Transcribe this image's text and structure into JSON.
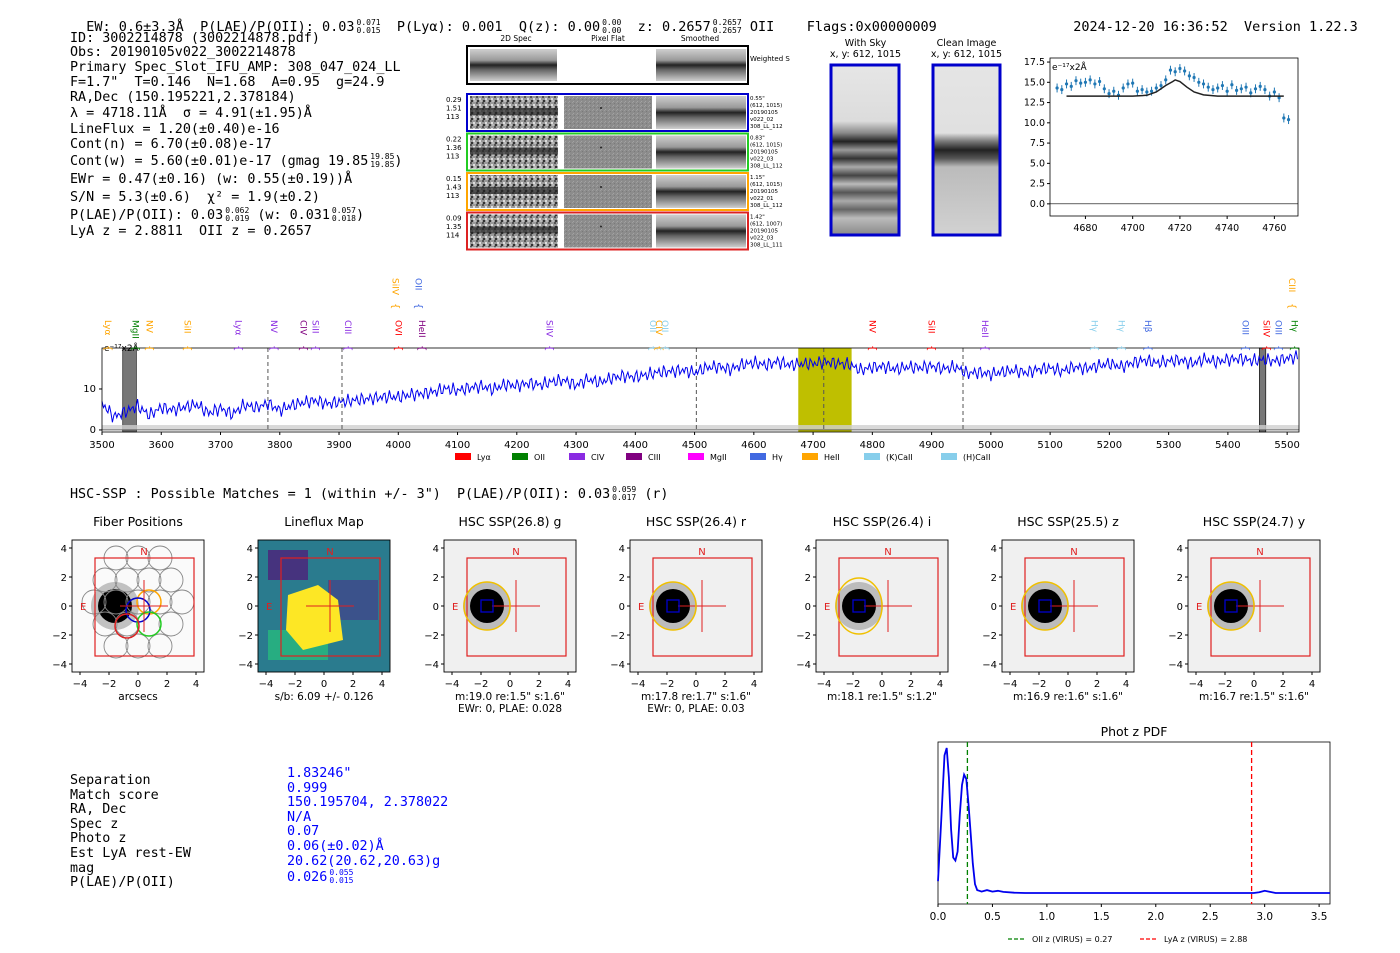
{
  "header": {
    "ew": "EW: 0.6±3.3Å",
    "plae_label": "P(LAE)/P(OII): 0.03",
    "plae_hi": "0.071",
    "plae_lo": "0.015",
    "plya": "P(Lyα): 0.001",
    "qz_label": "Q(z): 0.00",
    "qz_hi": "0.00",
    "qz_lo": "0.00",
    "z_label": "z: 0.2657",
    "z_hi": "0.2657",
    "z_lo": "0.2657",
    "z_line": "OII",
    "flags": "Flags:0x00000009",
    "datetime": "2024-12-20 16:36:52",
    "version": "Version 1.22.3"
  },
  "info": {
    "id": "ID: 3002214878 (3002214878.pdf)",
    "obs": "Obs: 20190105v022_3002214878",
    "primary": "Primary Spec_Slot_IFU_AMP: 308_047_024_LL",
    "fit": "F=1.7\"  T=0.146  N=1.68  A=0.95  g=24.9",
    "radec": "RA,Dec (150.195221,2.378184)",
    "lambda": "λ = 4718.11Å  σ = 4.91(±1.95)Å",
    "lineflux": "LineFlux = 1.20(±0.40)e-16",
    "contn": "Cont(n) = 6.70(±0.08)e-17",
    "contw": "Cont(w) = 5.60(±0.01)e-17 (gmag 19.85",
    "contw_hi": "19.85",
    "contw_lo": "19.85",
    "ewr": "EWr = 0.47(±0.16) (w: 0.55(±0.19))Å",
    "sn": "S/N = 5.3(±0.6)  χ² = 1.9(±0.2)",
    "plae": "P(LAE)/P(OII): 0.03",
    "plae_hi": "0.062",
    "plae_lo": "0.019",
    "plae_w": "(w: 0.031",
    "plae_w_hi": "0.057",
    "plae_w_lo": "0.018",
    "lyaz": "LyA z = 2.8811  OII z = 0.2657"
  },
  "spec2d": {
    "col_headers": [
      "2D Spec",
      "Pixel Flat",
      "Smoothed"
    ],
    "weighted_sum": "Weighted Sum",
    "rows": [
      {
        "left": [
          "0.29",
          "1.51",
          "113"
        ],
        "right": [
          "0.55\"",
          "(612, 1015)",
          "20190105",
          "v022_02",
          "308_LL_112"
        ],
        "color": "#0000cc"
      },
      {
        "left": [
          "0.22",
          "1.36",
          "113"
        ],
        "right": [
          "0.83\"",
          "(612, 1015)",
          "20190105",
          "v022_03",
          "308_LL_112"
        ],
        "color": "#22cc22"
      },
      {
        "left": [
          "0.15",
          "1.43",
          "113"
        ],
        "right": [
          "1.15\"",
          "(612, 1015)",
          "20190105",
          "v022_01",
          "308_LL_112"
        ],
        "color": "#ffa500"
      },
      {
        "left": [
          "0.09",
          "1.35",
          "114"
        ],
        "right": [
          "1.42\"",
          "(612, 1007)",
          "20190105",
          "v022_03",
          "308_LL_111"
        ],
        "color": "#dd2222"
      }
    ]
  },
  "sky": {
    "with_sky": "With Sky",
    "with_sky_xy": "x, y: 612, 1015",
    "clean": "Clean Image",
    "clean_xy": "x, y: 612, 1015"
  },
  "chart_data": [
    {
      "id": "zoom",
      "type": "line",
      "title": "",
      "ylabel": "e⁻¹⁷x2Å",
      "xlim": [
        4665,
        4770
      ],
      "ylim": [
        -1.5,
        18
      ],
      "xticks": [
        4680,
        4700,
        4720,
        4740,
        4760
      ],
      "yticks": [
        0.0,
        2.5,
        5.0,
        7.5,
        10.0,
        12.5,
        15.0,
        17.5
      ],
      "points_x": [
        4668,
        4670,
        4672,
        4674,
        4676,
        4678,
        4680,
        4682,
        4684,
        4686,
        4688,
        4690,
        4692,
        4694,
        4696,
        4698,
        4700,
        4702,
        4704,
        4706,
        4708,
        4710,
        4712,
        4714,
        4716,
        4718,
        4720,
        4722,
        4724,
        4726,
        4728,
        4730,
        4732,
        4734,
        4736,
        4738,
        4740,
        4742,
        4744,
        4746,
        4748,
        4750,
        4752,
        4754,
        4756,
        4758,
        4760,
        4762,
        4764,
        4766
      ],
      "points_y": [
        14.3,
        14.1,
        14.8,
        14.5,
        15.2,
        14.9,
        15.0,
        15.3,
        14.8,
        15.1,
        14.2,
        13.6,
        13.9,
        13.4,
        14.3,
        14.8,
        14.9,
        13.9,
        14.1,
        13.8,
        13.9,
        14.3,
        14.6,
        15.3,
        16.5,
        16.3,
        16.7,
        16.4,
        15.8,
        15.6,
        15.0,
        14.8,
        14.4,
        14.1,
        14.3,
        14.6,
        13.9,
        14.7,
        14.0,
        14.2,
        14.4,
        13.7,
        14.2,
        14.5,
        14.1,
        13.3,
        13.8,
        13.1,
        10.6,
        10.4
      ],
      "model_x": [
        4672,
        4690,
        4700,
        4706,
        4710,
        4714,
        4717,
        4718,
        4720,
        4723,
        4726,
        4730,
        4736,
        4745,
        4764
      ],
      "model_y": [
        13.3,
        13.3,
        13.3,
        13.4,
        13.8,
        14.6,
        15.1,
        15.3,
        15.1,
        14.4,
        13.8,
        13.45,
        13.3,
        13.3,
        13.3
      ]
    },
    {
      "id": "full-spectrum",
      "type": "line",
      "ylabel": "e⁻¹⁷x2Å",
      "xlim": [
        3500,
        5520
      ],
      "ylim": [
        -0.5,
        20
      ],
      "xticks": [
        3500,
        3600,
        3700,
        3800,
        3900,
        4000,
        4100,
        4200,
        4300,
        4400,
        4500,
        4600,
        4700,
        4800,
        4900,
        5000,
        5100,
        5200,
        5300,
        5400,
        5500
      ],
      "yticks": [
        0,
        10
      ],
      "x": [
        3500,
        3520,
        3540,
        3560,
        3580,
        3600,
        3620,
        3640,
        3660,
        3680,
        3700,
        3720,
        3740,
        3760,
        3780,
        3800,
        3820,
        3840,
        3860,
        3880,
        3900,
        3920,
        3940,
        3960,
        3980,
        4000,
        4020,
        4040,
        4060,
        4080,
        4100,
        4120,
        4140,
        4160,
        4180,
        4200,
        4220,
        4240,
        4260,
        4280,
        4300,
        4320,
        4340,
        4360,
        4380,
        4400,
        4420,
        4440,
        4460,
        4480,
        4500,
        4520,
        4540,
        4560,
        4580,
        4600,
        4620,
        4640,
        4660,
        4680,
        4700,
        4720,
        4740,
        4760,
        4780,
        4800,
        4820,
        4840,
        4860,
        4880,
        4900,
        4920,
        4940,
        4960,
        4980,
        5000,
        5020,
        5040,
        5060,
        5080,
        5100,
        5120,
        5140,
        5160,
        5180,
        5200,
        5220,
        5240,
        5260,
        5280,
        5300,
        5320,
        5340,
        5360,
        5380,
        5400,
        5420,
        5440,
        5460,
        5480,
        5500,
        5520
      ],
      "y": [
        6.5,
        3.2,
        4.5,
        5.8,
        3.6,
        5.5,
        4.9,
        5.6,
        6.2,
        4.1,
        5.3,
        3.8,
        6.1,
        5.4,
        6.5,
        4.8,
        6.0,
        6.7,
        7.2,
        6.4,
        6.8,
        7.1,
        7.5,
        7.8,
        8.1,
        8.0,
        8.6,
        8.9,
        9.3,
        10.1,
        9.6,
        10.3,
        10.7,
        9.9,
        11.1,
        10.8,
        11.4,
        11.0,
        11.8,
        12.1,
        10.9,
        12.4,
        11.6,
        12.7,
        13.2,
        12.9,
        13.5,
        14.1,
        14.3,
        14.6,
        14.0,
        15.2,
        15.5,
        14.8,
        15.9,
        16.4,
        15.8,
        16.7,
        15.9,
        16.1,
        16.2,
        16.6,
        16.3,
        16.0,
        14.6,
        15.3,
        15.5,
        14.8,
        15.4,
        15.2,
        15.6,
        14.9,
        15.4,
        13.8,
        14.1,
        13.6,
        14.2,
        14.5,
        14.0,
        14.8,
        15.1,
        14.3,
        15.4,
        15.0,
        15.6,
        16.2,
        15.4,
        16.5,
        17.0,
        16.3,
        16.8,
        17.1,
        16.2,
        17.3,
        16.6,
        17.2,
        17.4,
        16.9,
        17.1,
        16.8,
        17.5,
        17.9
      ],
      "noise_y": 1.2,
      "vlines": [
        3780,
        3905,
        4503,
        4718,
        4953
      ],
      "band": [
        4675,
        4765
      ],
      "mask_bands": [
        [
          3535,
          3558
        ],
        [
          5453,
          5464
        ]
      ],
      "legend": [
        {
          "label": "Lyα",
          "color": "#ff0000"
        },
        {
          "label": "OII",
          "color": "#008000"
        },
        {
          "label": "CIV",
          "color": "#8a2be2"
        },
        {
          "label": "CIII",
          "color": "#800080"
        },
        {
          "label": "MgII",
          "color": "#ff00ff"
        },
        {
          "label": "Hγ",
          "color": "#4169e1"
        },
        {
          "label": "HeII",
          "color": "#ffa500"
        },
        {
          "label": "(K)CaII",
          "color": "#87ceeb"
        },
        {
          "label": "(H)CaII",
          "color": "#87ceeb"
        }
      ],
      "line_labels": [
        {
          "x": 3500,
          "label": "Lyα",
          "color": "#ffa500",
          "row": 1
        },
        {
          "x": 3546,
          "label": "MgII",
          "color": "#008000",
          "row": 1
        },
        {
          "x": 3570,
          "label": "NV",
          "color": "#ffa500",
          "row": 1
        },
        {
          "x": 3634,
          "label": "SiII",
          "color": "#ffa500",
          "row": 1
        },
        {
          "x": 3720,
          "label": "Lyα",
          "color": "#8a2be2",
          "row": 1
        },
        {
          "x": 3780,
          "label": "NV",
          "color": "#8a2be2",
          "row": 1
        },
        {
          "x": 3830,
          "label": "CIV",
          "color": "#800080",
          "row": 1
        },
        {
          "x": 3850,
          "label": "SiII",
          "color": "#8a2be2",
          "row": 1
        },
        {
          "x": 3905,
          "label": "CIII",
          "color": "#8a2be2",
          "row": 1
        },
        {
          "x": 3985,
          "label": "SiIV",
          "color": "#ffa500",
          "row": 0
        },
        {
          "x": 3990,
          "label": "OVI",
          "color": "#ff0000",
          "row": 1
        },
        {
          "x": 4024,
          "label": "OII",
          "color": "#4169e1",
          "row": 0
        },
        {
          "x": 4030,
          "label": "HeII",
          "color": "#800080",
          "row": 1
        },
        {
          "x": 4245,
          "label": "SiIV",
          "color": "#8a2be2",
          "row": 1
        },
        {
          "x": 4420,
          "label": "OII",
          "color": "#87ceeb",
          "row": 1
        },
        {
          "x": 4430,
          "label": "CIV",
          "color": "#ffa500",
          "row": 1
        },
        {
          "x": 4440,
          "label": "OII",
          "color": "#87ceeb",
          "row": 1
        },
        {
          "x": 4790,
          "label": "NV",
          "color": "#ff0000",
          "row": 1
        },
        {
          "x": 4890,
          "label": "SiII",
          "color": "#ff0000",
          "row": 1
        },
        {
          "x": 4980,
          "label": "HeII",
          "color": "#8a2be2",
          "row": 1
        },
        {
          "x": 5165,
          "label": "Hγ",
          "color": "#87ceeb",
          "row": 1
        },
        {
          "x": 5210,
          "label": "Hγ",
          "color": "#87ceeb",
          "row": 1
        },
        {
          "x": 5255,
          "label": "Hβ",
          "color": "#4169e1",
          "row": 1
        },
        {
          "x": 5420,
          "label": "OIII",
          "color": "#4169e1",
          "row": 1
        },
        {
          "x": 5455,
          "label": "SiIV",
          "color": "#ff0000",
          "row": 1
        },
        {
          "x": 5475,
          "label": "OIII",
          "color": "#4169e1",
          "row": 1
        },
        {
          "x": 5498,
          "label": "CIII",
          "color": "#ffa500",
          "row": 0
        },
        {
          "x": 5502,
          "label": "Hγ",
          "color": "#008000",
          "row": 1
        }
      ]
    },
    {
      "id": "photz-pdf",
      "type": "line",
      "title": "Phot z PDF",
      "xlim": [
        0.0,
        3.6
      ],
      "xticks": [
        0.0,
        0.5,
        1.0,
        1.5,
        2.0,
        2.5,
        3.0,
        3.5
      ],
      "x": [
        0.0,
        0.03,
        0.06,
        0.08,
        0.1,
        0.12,
        0.14,
        0.16,
        0.18,
        0.2,
        0.22,
        0.24,
        0.26,
        0.28,
        0.3,
        0.32,
        0.34,
        0.36,
        0.38,
        0.4,
        0.45,
        0.5,
        0.55,
        0.6,
        0.7,
        0.8,
        1.0,
        1.5,
        2.0,
        2.5,
        2.9,
        2.95,
        3.0,
        3.05,
        3.1,
        3.2,
        3.6
      ],
      "y": [
        0.1,
        0.52,
        0.95,
        1.0,
        0.8,
        0.45,
        0.26,
        0.24,
        0.3,
        0.55,
        0.75,
        0.82,
        0.79,
        0.62,
        0.42,
        0.22,
        0.08,
        0.04,
        0.035,
        0.03,
        0.04,
        0.03,
        0.035,
        0.028,
        0.022,
        0.02,
        0.02,
        0.02,
        0.02,
        0.02,
        0.02,
        0.025,
        0.035,
        0.028,
        0.02,
        0.02,
        0.02
      ],
      "vlines": [
        {
          "x": 0.27,
          "color": "#008000",
          "label": "OII z (VIRUS) = 0.27"
        },
        {
          "x": 2.88,
          "color": "#ff0000",
          "label": "LyA z (VIRUS) = 2.88"
        }
      ]
    }
  ],
  "hsc": {
    "line": "HSC-SSP : Possible Matches = 1 (within +/- 3\")  P(LAE)/P(OII): 0.03",
    "hi": "0.059",
    "lo": "0.017",
    "suffix": "(r)",
    "panels": [
      {
        "title": "Fiber Positions",
        "caption1": "arcsecs",
        "caption2": ""
      },
      {
        "title": "Lineflux Map",
        "caption1": "s/b: 6.09 +/- 0.126",
        "caption2": ""
      },
      {
        "title": "HSC SSP(26.8) g",
        "caption1": "m:19.0  re:1.5\"  s:1.6\"",
        "caption2": "EWr: 0, PLAE: 0.028"
      },
      {
        "title": "HSC SSP(26.4) r",
        "caption1": "m:17.8  re:1.7\"  s:1.6\"",
        "caption2": "EWr: 0, PLAE: 0.03"
      },
      {
        "title": "HSC SSP(26.4) i",
        "caption1": "m:18.1  re:1.5\"  s:1.2\"",
        "caption2": ""
      },
      {
        "title": "HSC SSP(25.5) z",
        "caption1": "m:16.9  re:1.6\"  s:1.6\"",
        "caption2": ""
      },
      {
        "title": "HSC SSP(24.7) y",
        "caption1": "m:16.7  re:1.5\"  s:1.6\"",
        "caption2": ""
      }
    ],
    "ticks": [
      "4",
      "2",
      "0",
      "−2",
      "−4"
    ],
    "xticks": [
      "−4",
      "−2",
      "0",
      "2",
      "4"
    ],
    "n_label": "N",
    "e_label": "E"
  },
  "match": {
    "labels": [
      "Separation",
      "Match score",
      "RA, Dec",
      "Spec z",
      "Photo z",
      "Est LyA rest-EW",
      "mag",
      "P(LAE)/P(OII)"
    ],
    "values": [
      "1.83246\"",
      "0.999",
      "150.195704, 2.378022",
      "N/A",
      "0.07",
      "0.06(±0.02)Å",
      "20.62(20.62,20.63)g",
      "0.026"
    ],
    "plae_hi": "0.055",
    "plae_lo": "0.015"
  }
}
